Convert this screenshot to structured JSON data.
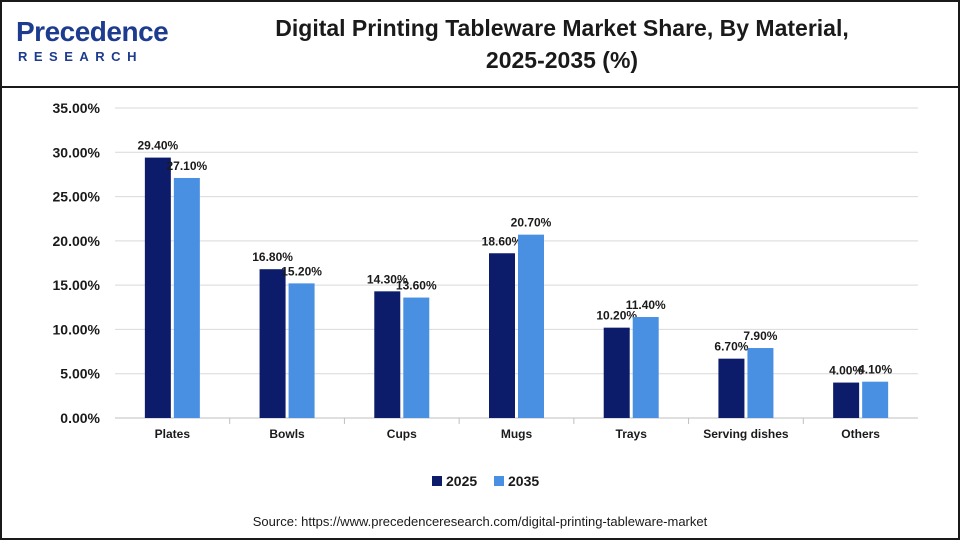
{
  "brand": {
    "name": "Precedence",
    "subtitle": "RESEARCH",
    "color": "#1d3b8f"
  },
  "title_line1": "Digital Printing Tableware Market Share, By Material,",
  "title_line2": "2025-2035 (%)",
  "source": "Source: https://www.precedenceresearch.com/digital-printing-tableware-market",
  "chart_data": {
    "type": "bar",
    "categories": [
      "Plates",
      "Bowls",
      "Cups",
      "Mugs",
      "Trays",
      "Serving dishes",
      "Others"
    ],
    "series": [
      {
        "name": "2025",
        "color": "#0d1b6b",
        "values": [
          29.4,
          16.8,
          14.3,
          18.6,
          10.2,
          6.7,
          4.0
        ],
        "labels": [
          "29.40%",
          "16.80%",
          "14.30%",
          "18.60%",
          "10.20%",
          "6.70%",
          "4.00%"
        ]
      },
      {
        "name": "2035",
        "color": "#4a90e2",
        "values": [
          27.1,
          15.2,
          13.6,
          20.7,
          11.4,
          7.9,
          4.1
        ],
        "labels": [
          "27.10%",
          "15.20%",
          "13.60%",
          "20.70%",
          "11.40%",
          "7.90%",
          "4.10%"
        ]
      }
    ],
    "yticks": [
      "0.00%",
      "5.00%",
      "10.00%",
      "15.00%",
      "20.00%",
      "25.00%",
      "30.00%",
      "35.00%"
    ],
    "ylim": [
      0,
      35
    ],
    "grid": true,
    "legend": "bottom-center",
    "xlabel": "",
    "ylabel": ""
  }
}
